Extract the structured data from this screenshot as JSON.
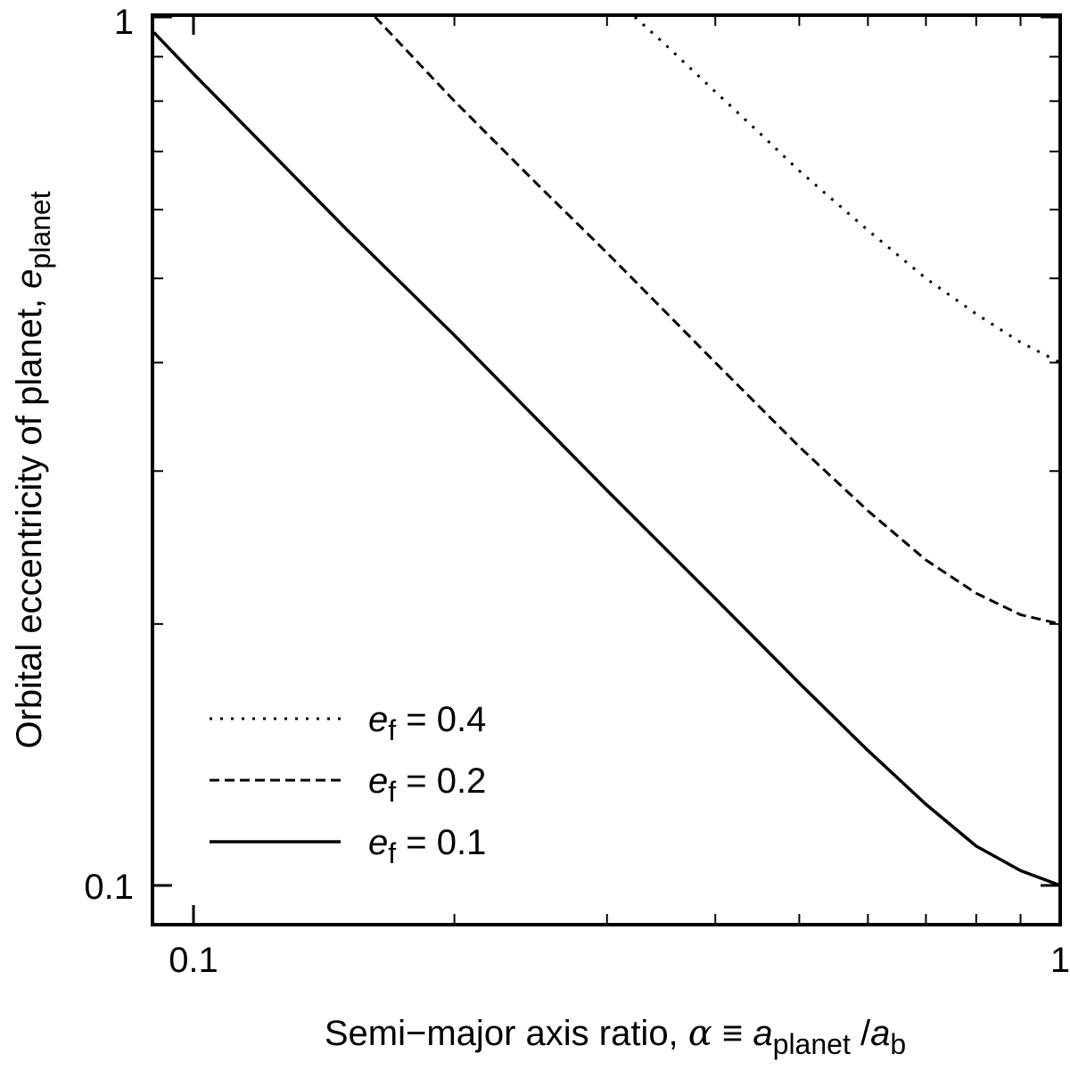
{
  "chart_data": {
    "type": "line",
    "title": "",
    "xscale": "log",
    "yscale": "log",
    "xlim": [
      0.09,
      1.0
    ],
    "ylim": [
      0.09,
      1.0
    ],
    "xticks": [
      {
        "value": 0.1,
        "label": "0.1"
      },
      {
        "value": 1.0,
        "label": "1"
      }
    ],
    "yticks": [
      {
        "value": 0.1,
        "label": "0.1"
      },
      {
        "value": 1.0,
        "label": "1"
      }
    ],
    "xlabel": {
      "prefix": "Semi−major axis ratio, ",
      "alpha": "α",
      "equiv": " ≡ ",
      "a1": "a",
      "sub1": "planet",
      "slash": " /",
      "a2": "a",
      "sub2": "b"
    },
    "ylabel": {
      "prefix": "Orbital eccentricity of planet, ",
      "e": "e",
      "sub": "planet"
    },
    "legend_position": "bottom-left",
    "series": [
      {
        "name": "e_f = 0.4",
        "legend": {
          "e": "e",
          "sub": "f",
          "rest": " = 0.4"
        },
        "style": "dotted",
        "x": [
          0.323,
          0.35,
          0.4,
          0.45,
          0.5,
          0.6,
          0.7,
          0.8,
          0.9,
          1.0
        ],
        "y": [
          1.0,
          0.93,
          0.82,
          0.735,
          0.665,
          0.568,
          0.5,
          0.455,
          0.422,
          0.4
        ]
      },
      {
        "name": "e_f = 0.2",
        "legend": {
          "e": "e",
          "sub": "f",
          "rest": " = 0.2"
        },
        "style": "dashed",
        "x": [
          0.162,
          0.2,
          0.25,
          0.3,
          0.35,
          0.4,
          0.5,
          0.6,
          0.7,
          0.8,
          0.9,
          1.0
        ],
        "y": [
          1.0,
          0.8,
          0.64,
          0.535,
          0.458,
          0.4,
          0.32,
          0.27,
          0.237,
          0.217,
          0.205,
          0.2
        ]
      },
      {
        "name": "e_f = 0.1",
        "legend": {
          "e": "e",
          "sub": "f",
          "rest": " = 0.1"
        },
        "style": "solid",
        "x": [
          0.09,
          0.1,
          0.15,
          0.2,
          0.3,
          0.4,
          0.5,
          0.6,
          0.7,
          0.8,
          0.9,
          1.0
        ],
        "y": [
          0.96,
          0.86,
          0.57,
          0.43,
          0.285,
          0.214,
          0.171,
          0.143,
          0.124,
          0.111,
          0.104,
          0.1
        ]
      }
    ]
  }
}
